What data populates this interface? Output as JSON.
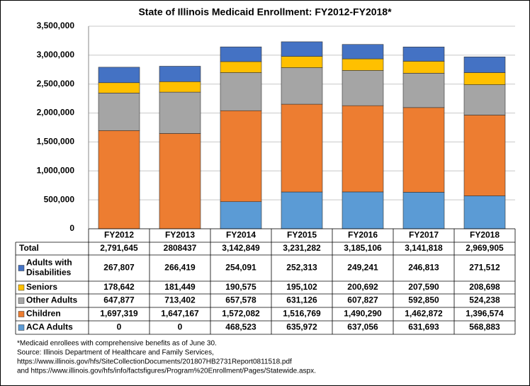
{
  "chart_data": {
    "type": "stacked-bar-table",
    "title": "State of Illinois Medicaid Enrollment: FY2012-FY2018*",
    "categories": [
      "FY2012",
      "FY2013",
      "FY2014",
      "FY2015",
      "FY2016",
      "FY2017",
      "FY2018"
    ],
    "ylim": [
      0,
      3500000
    ],
    "yticks": [
      0,
      {
        "value": 500000,
        "label": "500,000"
      },
      {
        "value": 1000000,
        "label": "1,000,000"
      },
      {
        "value": 1500000,
        "label": "1,500,000"
      },
      {
        "value": 2000000,
        "label": "2,000,000"
      },
      {
        "value": 2500000,
        "label": "2,500,000"
      },
      {
        "value": 3000000,
        "label": "3,000,000"
      },
      {
        "value": 3500000,
        "label": "3,500,000"
      }
    ],
    "grid": true,
    "total": {
      "name": "Total",
      "values": [
        2791645,
        2808437,
        3142849,
        3231282,
        3185106,
        3141818,
        2969905
      ],
      "value_labels": [
        "2,791,645",
        "2808437",
        "3,142,849",
        "3,231,282",
        "3,185,106",
        "3,141,818",
        "2,969,905"
      ]
    },
    "series": [
      {
        "name": "ACA Adults",
        "color": "#5b9bd5",
        "values": [
          0,
          0,
          468523,
          635972,
          637056,
          631693,
          568883
        ],
        "value_labels": [
          "0",
          "0",
          "468,523",
          "635,972",
          "637,056",
          "631,693",
          "568,883"
        ]
      },
      {
        "name": "Children",
        "color": "#ed7d31",
        "values": [
          1697319,
          1647167,
          1572082,
          1516769,
          1490290,
          1462872,
          1396574
        ],
        "value_labels": [
          "1,697,319",
          "1,647,167",
          "1,572,082",
          "1,516,769",
          "1,490,290",
          "1,462,872",
          "1,396,574"
        ]
      },
      {
        "name": "Other Adults",
        "color": "#a5a5a5",
        "values": [
          647877,
          713402,
          657578,
          631126,
          607827,
          592850,
          524238
        ],
        "value_labels": [
          "647,877",
          "713,402",
          "657,578",
          "631,126",
          "607,827",
          "592,850",
          "524,238"
        ]
      },
      {
        "name": "Seniors",
        "color": "#ffc000",
        "values": [
          178642,
          181449,
          190575,
          195102,
          200692,
          207590,
          208698
        ],
        "value_labels": [
          "178,642",
          "181,449",
          "190,575",
          "195,102",
          "200,692",
          "207,590",
          "208,698"
        ]
      },
      {
        "name": "Adults with Disabilities",
        "color": "#4472c4",
        "values": [
          267807,
          266419,
          254091,
          252313,
          249241,
          246813,
          271512
        ],
        "value_labels": [
          "267,807",
          "266,419",
          "254,091",
          "252,313",
          "249,241",
          "246,813",
          "271,512"
        ]
      }
    ],
    "notes": [
      "*Medicaid enrollees with comprehensive benefits as of June 30.",
      "Source: Illinois Department of Healthcare and Family Services,",
      "https://www.illinois.gov/hfs/SiteCollectionDocuments/201807HB2731Report0811518.pdf",
      "and https://www.illinois.gov/hfs/info/factsfigures/Program%20Enrollment/Pages/Statewide.aspx."
    ]
  }
}
